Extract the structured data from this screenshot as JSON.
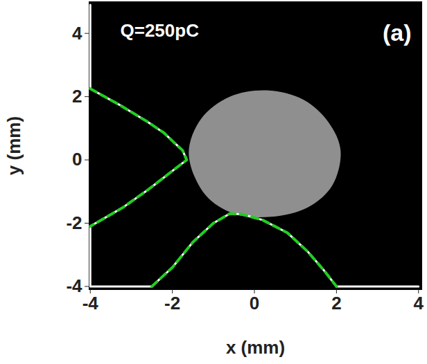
{
  "chart_data": {
    "type": "image_with_contours",
    "annotations": [
      "Q=250pC"
    ],
    "panel_label": "(a)",
    "x_label": "x (mm)",
    "y_label": "y (mm)",
    "xlim": [
      -4.03,
      4.08
    ],
    "ylim": [
      -4.1,
      5.0
    ],
    "xticks": [
      -4,
      -2,
      0,
      2,
      4
    ],
    "yticks": [
      -4,
      -2,
      0,
      2,
      4
    ],
    "grid": false,
    "background": "#000000",
    "series": [
      {
        "type": "area",
        "color": "#a8a8a8",
        "points": [
          [
            -1.6,
            0.2
          ],
          [
            -1.3,
            1.3
          ],
          [
            -0.6,
            2.0
          ],
          [
            0.3,
            2.2
          ],
          [
            1.2,
            1.9
          ],
          [
            1.8,
            1.2
          ],
          [
            2.1,
            0.3
          ],
          [
            1.9,
            -0.8
          ],
          [
            1.3,
            -1.5
          ],
          [
            0.4,
            -1.8
          ],
          [
            -0.5,
            -1.7
          ],
          [
            -1.2,
            -1.1
          ]
        ]
      },
      {
        "type": "line",
        "color": "#ffffff",
        "line_style": "solid",
        "points": [
          [
            -4,
            4.9
          ],
          [
            -4,
            2.25
          ],
          [
            -3.3,
            1.75
          ],
          [
            -2.6,
            1.2
          ],
          [
            -2.2,
            0.85
          ],
          [
            -2.0,
            0.6
          ],
          [
            -1.75,
            0.3
          ],
          [
            -1.65,
            0.0
          ],
          [
            -1.8,
            -0.15
          ],
          [
            -2.1,
            -0.45
          ],
          [
            -2.6,
            -0.95
          ],
          [
            -3.2,
            -1.5
          ],
          [
            -4,
            -2.1
          ],
          [
            -4,
            -4.0
          ],
          [
            -2.5,
            -4.0
          ],
          [
            -2.0,
            -3.4
          ],
          [
            -1.5,
            -2.6
          ],
          [
            -1.0,
            -2.0
          ],
          [
            -0.6,
            -1.7
          ],
          [
            -0.3,
            -1.72
          ],
          [
            0.2,
            -1.9
          ],
          [
            0.8,
            -2.3
          ],
          [
            1.3,
            -2.9
          ],
          [
            1.7,
            -3.5
          ],
          [
            2.0,
            -4.0
          ],
          [
            4,
            -4.0
          ]
        ]
      },
      {
        "type": "line",
        "color": "#22cc22",
        "line_style": "dashed",
        "points": [
          [
            -4,
            2.25
          ],
          [
            -3.3,
            1.75
          ],
          [
            -2.6,
            1.2
          ],
          [
            -2.2,
            0.85
          ],
          [
            -2.0,
            0.6
          ],
          [
            -1.75,
            0.3
          ],
          [
            -1.65,
            0.0
          ],
          [
            -1.8,
            -0.15
          ],
          [
            -2.1,
            -0.45
          ],
          [
            -2.6,
            -0.95
          ],
          [
            -3.2,
            -1.5
          ],
          [
            -4,
            -2.1
          ]
        ]
      },
      {
        "type": "line",
        "color": "#22cc22",
        "line_style": "dashed",
        "points": [
          [
            -2.5,
            -4.0
          ],
          [
            -2.0,
            -3.4
          ],
          [
            -1.5,
            -2.6
          ],
          [
            -1.0,
            -2.0
          ],
          [
            -0.6,
            -1.7
          ],
          [
            -0.3,
            -1.72
          ],
          [
            0.2,
            -1.9
          ],
          [
            0.8,
            -2.3
          ],
          [
            1.3,
            -2.9
          ],
          [
            1.7,
            -3.5
          ],
          [
            2.0,
            -4.0
          ]
        ]
      }
    ]
  }
}
